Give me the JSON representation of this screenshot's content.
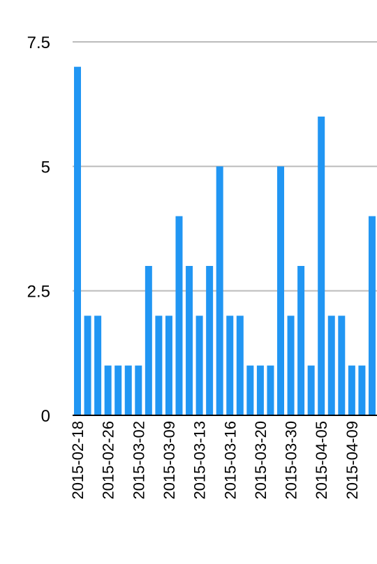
{
  "chart_data": {
    "type": "bar",
    "categories": [
      "2015-02-18",
      null,
      null,
      "2015-02-26",
      null,
      null,
      "2015-03-02",
      null,
      null,
      "2015-03-09",
      null,
      null,
      "2015-03-13",
      null,
      null,
      "2015-03-16",
      null,
      null,
      "2015-03-20",
      null,
      null,
      "2015-03-30",
      null,
      null,
      "2015-04-05",
      null,
      null,
      "2015-04-09",
      null,
      null
    ],
    "values": [
      7,
      2,
      2,
      1,
      1,
      1,
      1,
      3,
      2,
      2,
      4,
      3,
      2,
      3,
      5,
      2,
      2,
      1,
      1,
      1,
      5,
      2,
      3,
      1,
      6,
      2,
      2,
      1,
      1,
      4
    ],
    "color": "#2196f3",
    "ylim": [
      0,
      7.5
    ],
    "yticks": [
      0,
      2.5,
      5,
      7.5
    ],
    "grid": true
  }
}
